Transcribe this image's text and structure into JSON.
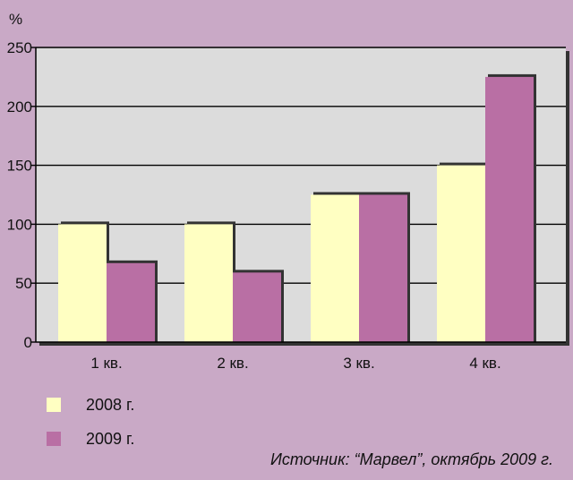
{
  "chart_data": {
    "type": "bar",
    "ylabel": "%",
    "ylim": [
      0,
      250
    ],
    "yticks": [
      0,
      50,
      100,
      150,
      200,
      250
    ],
    "grid": true,
    "categories": [
      "1 кв.",
      "2 кв.",
      "3 кв.",
      "4 кв."
    ],
    "series": [
      {
        "name": "2008 г.",
        "color": "#ffffc2",
        "values": [
          100,
          100,
          125,
          150
        ]
      },
      {
        "name": "2009 г.",
        "color": "#b96fa4",
        "values": [
          67,
          59,
          125,
          225
        ]
      }
    ],
    "legend_position": "bottom-left"
  },
  "source": "Источник: “Марвел”, октябрь 2009 г.",
  "colors": {
    "background": "#c9a9c6",
    "plot_area": "#dcdcdc",
    "shadow": "#333333"
  }
}
